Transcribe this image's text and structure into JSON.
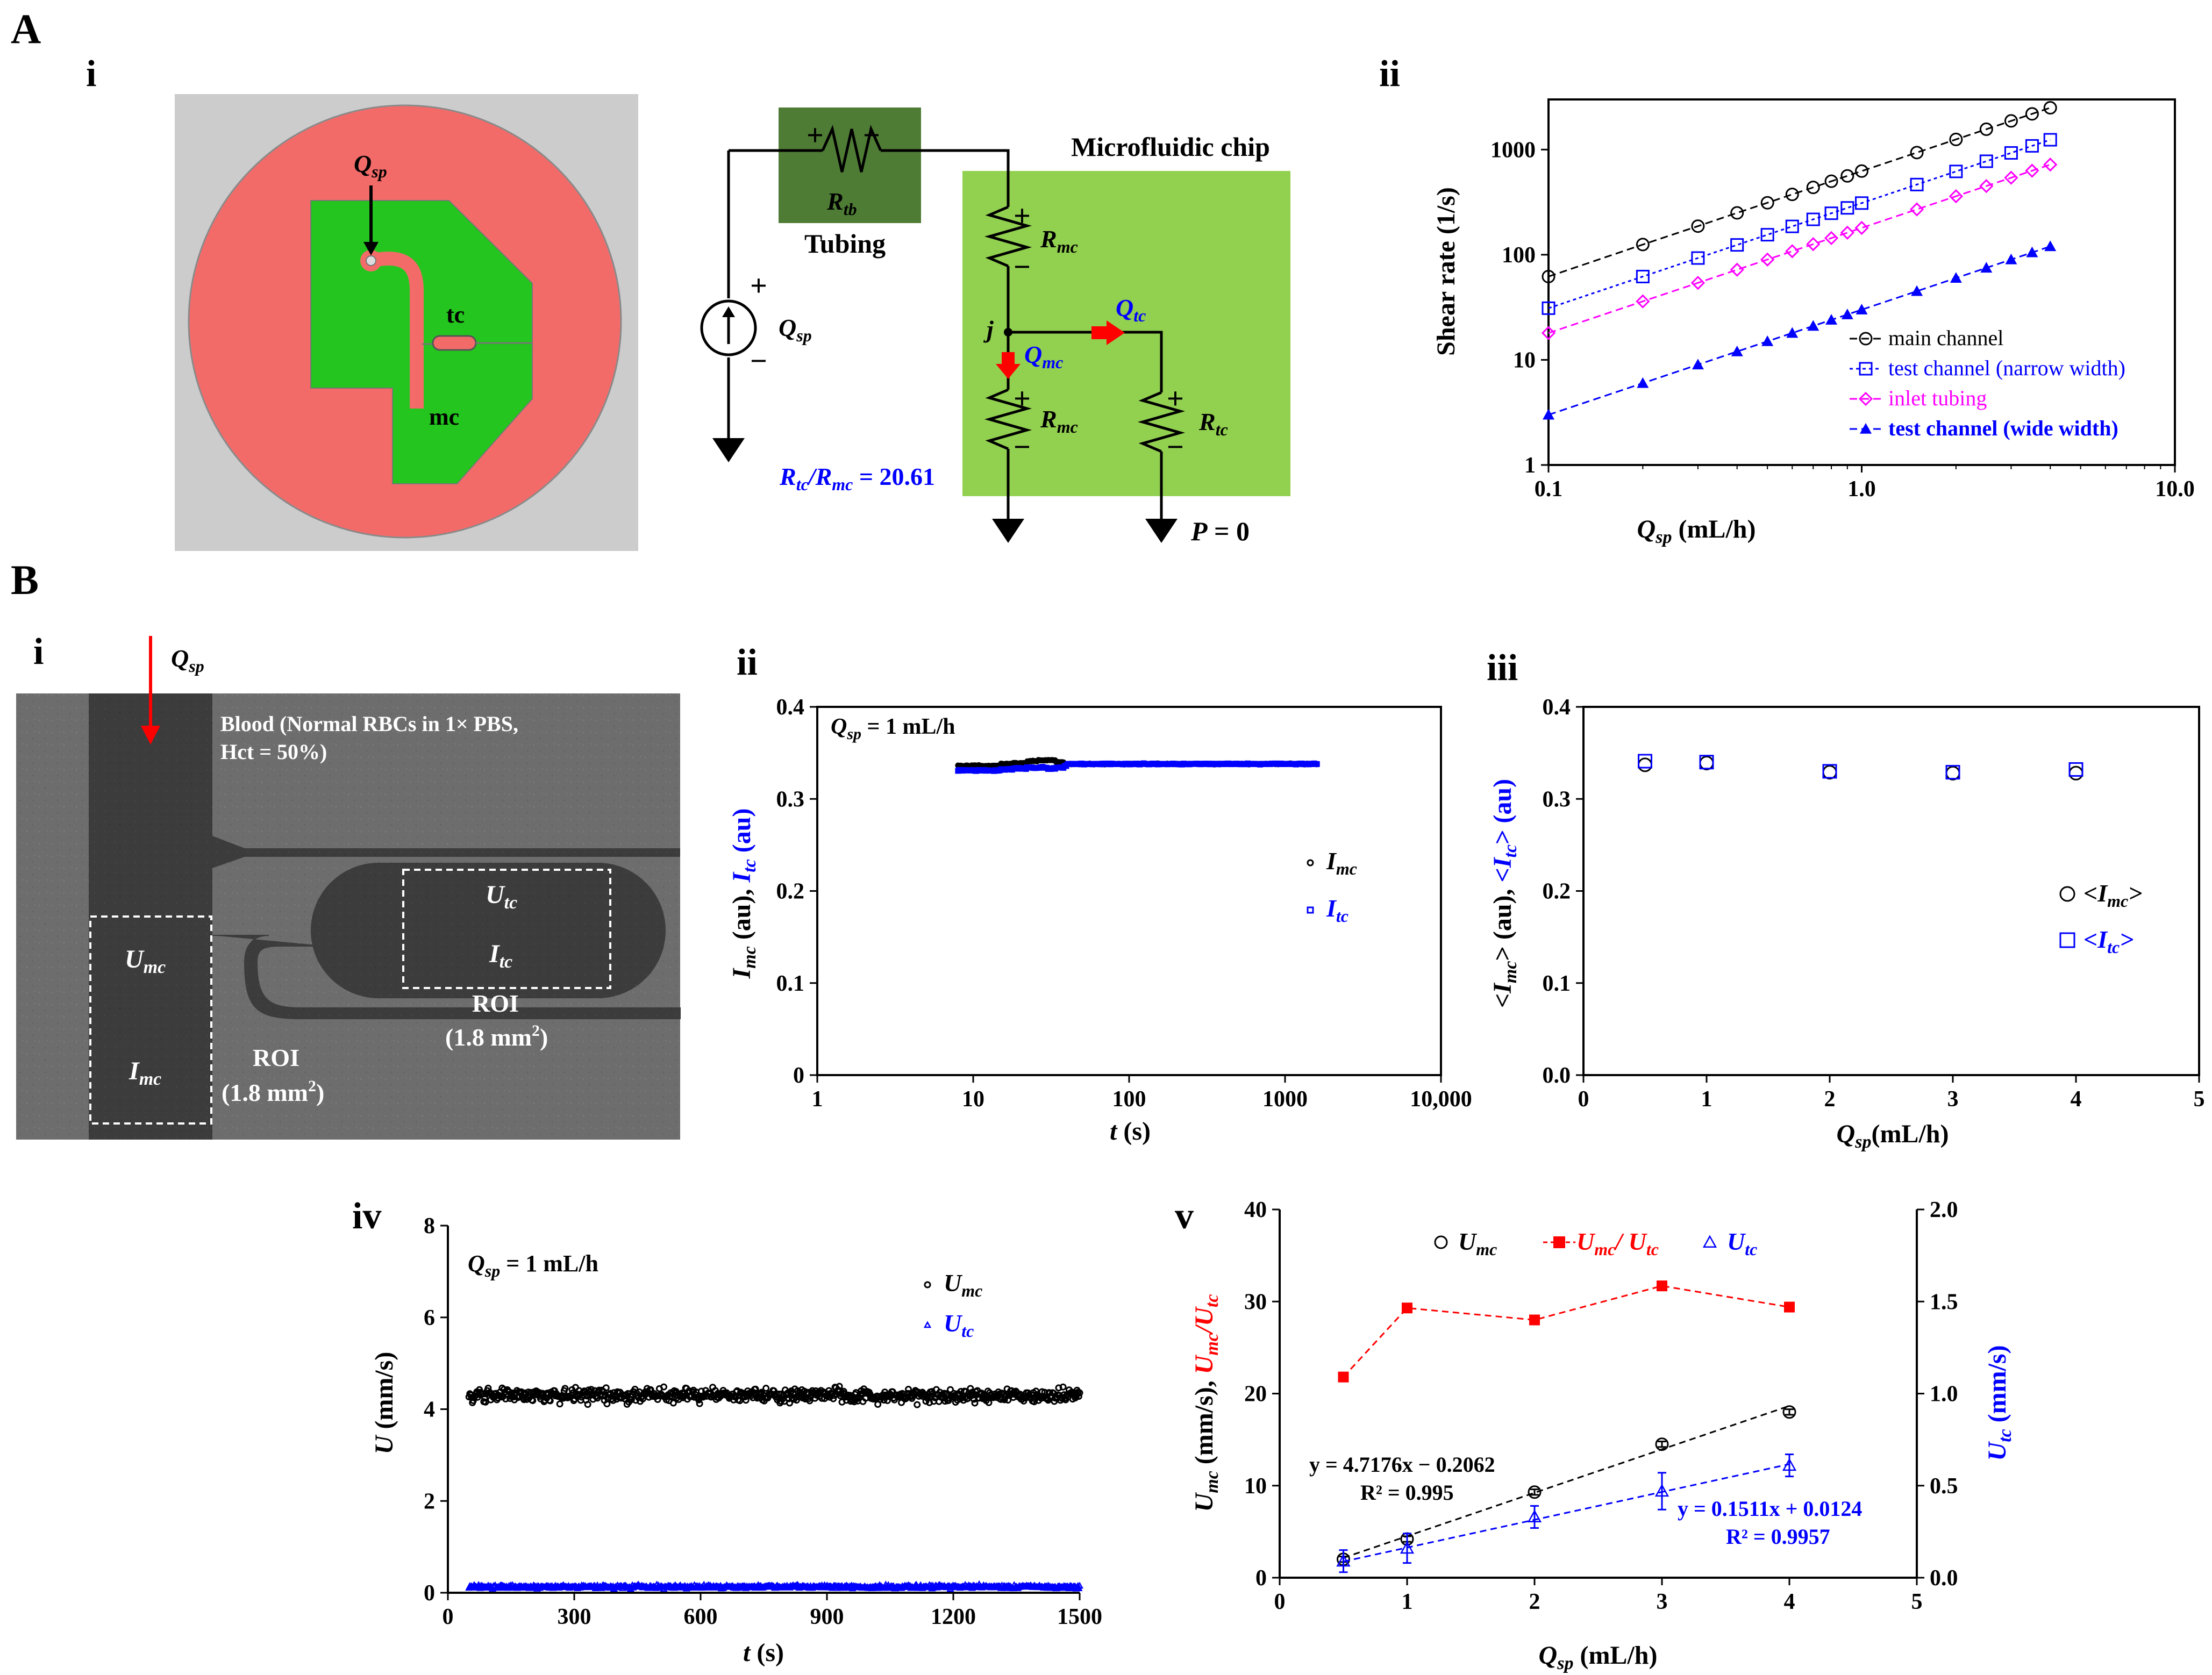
{
  "panels": {
    "A": "A",
    "B": "B",
    "Ai": "i",
    "Aii": "ii",
    "Bi": "i",
    "Bii": "ii",
    "Biii": "iii",
    "Biv": "iv",
    "Bv": "v"
  },
  "chip_image": {
    "q_sp": "Q",
    "q_sp_sub": "sp",
    "tc": "tc",
    "mc": "mc",
    "colors": {
      "background": "#cccccc",
      "disc": "#f36b69",
      "channel": "#23c51e"
    }
  },
  "circuit": {
    "tubing_box_label": "Tubing",
    "r_tb": "R",
    "r_tb_sub": "tb",
    "chip_label": "Microfluidic chip",
    "q_sp": "Q",
    "q_sp_sub": "sp",
    "r_mc": "R",
    "r_mc_sub": "mc",
    "r_tc": "R",
    "r_tc_sub": "tc",
    "q_mc": "Q",
    "q_mc_sub": "mc",
    "q_tc": "Q",
    "q_tc_sub": "tc",
    "node_j": "j",
    "ratio_r1": "R",
    "ratio_r1_sub": "tc",
    "ratio_sep": "/",
    "ratio_r2": "R",
    "ratio_r2_sub": "mc",
    "ratio_value": " = 20.61",
    "pressure": "P",
    "pressure_value": " = 0",
    "plus": "+",
    "minus": "−",
    "colors": {
      "tubing": "#4f7c35",
      "chip": "#92d050",
      "arrow": "#ff0000",
      "blue": "#0000ff"
    }
  },
  "micrograph": {
    "q_sp": "Q",
    "q_sp_sub": "sp",
    "blood_line1": "Blood (Normal RBCs in 1× PBS,",
    "blood_line2": "Hct = 50%)",
    "u_mc": "U",
    "u_mc_sub": "mc",
    "i_mc": "I",
    "i_mc_sub": "mc",
    "u_tc": "U",
    "u_tc_sub": "tc",
    "i_tc": "I",
    "i_tc_sub": "tc",
    "roi_1": "ROI",
    "roi_1_area": "(1.8 mm",
    "roi_1_area_sup": "2",
    "roi_1_area_end": ")",
    "roi_2": "ROI",
    "roi_2_area": "(1.8 mm",
    "roi_2_area_sup": "2",
    "roi_2_area_end": ")"
  },
  "chart_data": [
    {
      "id": "Aii",
      "type": "scatter",
      "x_scale": "log",
      "y_scale": "log",
      "xlim": [
        0.1,
        10
      ],
      "ylim": [
        1,
        3000
      ],
      "x_ticks": [
        "0.1",
        "1.0",
        "10.0"
      ],
      "y_ticks": [
        "1",
        "10",
        "100",
        "1000"
      ],
      "xlabel": "Q",
      "xlabel_sub": "sp",
      "xlabel_unit": " (mL/h)",
      "ylabel": "Shear rate (1/s)",
      "legend_position": "bottom-right",
      "x": [
        0.1,
        0.2,
        0.3,
        0.4,
        0.5,
        0.6,
        0.7,
        0.8,
        0.9,
        1.0,
        1.5,
        2.0,
        2.5,
        3.0,
        3.5,
        4.0
      ],
      "series": [
        {
          "name": "main channel",
          "marker": "circle-open",
          "color": "#000000",
          "values": [
            62,
            125,
            187,
            250,
            312,
            375,
            437,
            500,
            562,
            625,
            937,
            1250,
            1562,
            1875,
            2187,
            2500
          ]
        },
        {
          "name": "test channel (narrow width)",
          "marker": "square-open",
          "color": "#0000ff",
          "values": [
            31,
            62,
            93,
            124,
            155,
            186,
            217,
            248,
            279,
            310,
            465,
            620,
            775,
            930,
            1085,
            1240
          ]
        },
        {
          "name": "inlet tubing",
          "marker": "diamond-open",
          "color": "#ff00ff",
          "values": [
            18,
            36,
            54,
            72,
            90,
            108,
            126,
            144,
            162,
            180,
            270,
            360,
            450,
            540,
            630,
            720
          ]
        },
        {
          "name": "test channel (wide width)",
          "marker": "triangle-filled",
          "color": "#0000ff",
          "values": [
            3.0,
            6.0,
            9.0,
            12,
            15,
            18,
            21,
            24,
            27,
            30,
            45,
            60,
            75,
            90,
            105,
            120
          ]
        }
      ]
    },
    {
      "id": "Bii",
      "type": "scatter",
      "x_scale": "log",
      "xlim": [
        1,
        10000
      ],
      "ylim": [
        0,
        0.4
      ],
      "x_ticks": [
        "1",
        "10",
        "100",
        "1000",
        "10,000"
      ],
      "y_ticks": [
        "0",
        "0.1",
        "0.2",
        "0.3",
        "0.4"
      ],
      "xlabel": "t",
      "xlabel_unit": " (s)",
      "ylabel_1": "I",
      "ylabel_1_sub": "mc",
      "ylabel_1_unit": " (au), ",
      "ylabel_2": "I",
      "ylabel_2_sub": "tc",
      "ylabel_2_unit": " (au)",
      "annotation": "Q",
      "annotation_sub": "sp",
      "annotation_value": " = 1 mL/h",
      "legend_position": "right",
      "series": [
        {
          "name": "I",
          "name_sub": "mc",
          "marker": "circle-open",
          "color": "#000000",
          "t_range": [
            8,
            1600
          ],
          "mean": 0.338,
          "transient": {
            "t": [
              12,
              15,
              18,
              22,
              26,
              30,
              34,
              38
            ],
            "values": [
              0.336,
              0.338,
              0.339,
              0.341,
              0.342,
              0.342,
              0.34,
              0.338
            ]
          }
        },
        {
          "name": "I",
          "name_sub": "tc",
          "marker": "square-open",
          "color": "#0000ff",
          "t_range": [
            8,
            1600
          ],
          "mean": 0.338,
          "transient": {
            "t": [
              12,
              15,
              18,
              22,
              26,
              30,
              34,
              38
            ],
            "values": [
              0.331,
              0.332,
              0.333,
              0.334,
              0.334,
              0.333,
              0.334,
              0.336
            ]
          }
        }
      ]
    },
    {
      "id": "Biii",
      "type": "scatter",
      "xlim": [
        0,
        5
      ],
      "ylim": [
        0,
        0.4
      ],
      "x_ticks": [
        "0",
        "1",
        "2",
        "3",
        "4",
        "5"
      ],
      "y_ticks": [
        "0.0",
        "0.1",
        "0.2",
        "0.3",
        "0.4"
      ],
      "xlabel": "Q",
      "xlabel_sub": "sp",
      "xlabel_unit": "(mL/h)",
      "ylabel_1": "<I",
      "ylabel_1_sub": "mc",
      "ylabel_1_unit": "> (au), ",
      "ylabel_2": "<I",
      "ylabel_2_sub": "tc",
      "ylabel_2_unit": "> (au)",
      "legend_position": "right",
      "x": [
        0.5,
        1,
        2,
        3,
        4
      ],
      "series": [
        {
          "name": "<I",
          "name_sub": "mc",
          "name_end": ">",
          "marker": "circle-open",
          "color": "#000000",
          "values": [
            0.337,
            0.339,
            0.329,
            0.328,
            0.328
          ]
        },
        {
          "name": "<I",
          "name_sub": "tc",
          "name_end": ">",
          "marker": "square-open",
          "color": "#0000ff",
          "values": [
            0.341,
            0.34,
            0.33,
            0.329,
            0.332
          ]
        }
      ]
    },
    {
      "id": "Biv",
      "type": "scatter",
      "xlim": [
        0,
        1500
      ],
      "ylim": [
        0,
        8
      ],
      "x_ticks": [
        "0",
        "300",
        "600",
        "900",
        "1200",
        "1500"
      ],
      "y_ticks": [
        "0",
        "2",
        "4",
        "6",
        "8"
      ],
      "xlabel": "t",
      "xlabel_unit": " (s)",
      "ylabel": "U",
      "ylabel_unit": " (mm/s)",
      "annotation": "Q",
      "annotation_sub": "sp",
      "annotation_value": " = 1 mL/h",
      "legend_position": "top-right",
      "series": [
        {
          "name": "U",
          "name_sub": "mc",
          "marker": "circle-open",
          "color": "#000000",
          "t_range": [
            50,
            1500
          ],
          "mean": 4.3,
          "spread": 0.25
        },
        {
          "name": "U",
          "name_sub": "tc",
          "marker": "triangle-open",
          "color": "#0000ff",
          "t_range": [
            50,
            1500
          ],
          "mean": 0.13,
          "spread": 0.06
        }
      ]
    },
    {
      "id": "Bv",
      "type": "line",
      "xlim": [
        0,
        5
      ],
      "ylim": [
        0,
        40
      ],
      "y2lim": [
        0,
        2.0
      ],
      "x_ticks": [
        "0",
        "1",
        "2",
        "3",
        "4",
        "5"
      ],
      "y_ticks": [
        "0",
        "10",
        "20",
        "30",
        "40"
      ],
      "y2_ticks": [
        "0.0",
        "0.5",
        "1.0",
        "1.5",
        "2.0"
      ],
      "xlabel": "Q",
      "xlabel_sub": "sp",
      "xlabel_unit": " (mL/h)",
      "ylabel_1": "U",
      "ylabel_1_sub": "mc",
      "ylabel_1_unit": " (mm/s), ",
      "ylabel_2": "U",
      "ylabel_2_sub": "mc",
      "ylabel_2_sep": "/",
      "ylabel_2b": "U",
      "ylabel_2b_sub": "tc",
      "y2label": "U",
      "y2label_sub": "tc",
      "y2label_unit": " (mm/s)",
      "legend_position": "top",
      "x": [
        0.5,
        1,
        2,
        3,
        4
      ],
      "series": [
        {
          "name": "U",
          "name_sub": "mc",
          "axis": "left",
          "marker": "circle-open",
          "color": "#000000",
          "values": [
            2.0,
            4.2,
            9.3,
            14.5,
            18.0
          ],
          "errors": [
            0.3,
            0.3,
            0.3,
            0.3,
            0.3
          ]
        },
        {
          "name": "U",
          "name_sub": "mc",
          "name_sep": "/ ",
          "name_b": "U",
          "name_b_sub": "tc",
          "axis": "left",
          "marker": "square-filled",
          "color": "#ff0000",
          "values": [
            21.8,
            29.3,
            28.0,
            31.7,
            29.4
          ]
        },
        {
          "name": "U",
          "name_sub": "tc",
          "axis": "right",
          "marker": "triangle-open",
          "color": "#0000ff",
          "values": [
            0.09,
            0.16,
            0.33,
            0.47,
            0.61
          ],
          "errors": [
            0.06,
            0.08,
            0.06,
            0.1,
            0.06
          ]
        }
      ],
      "fits": [
        {
          "series": "U_mc",
          "equation": "y = 4.7176x − 0.2062",
          "r2": "R² = 0.995",
          "color": "#000000"
        },
        {
          "series": "U_tc",
          "equation": "y = 0.1511x + 0.0124",
          "r2": "R² = 0.9957",
          "color": "#0000ff"
        }
      ]
    }
  ]
}
